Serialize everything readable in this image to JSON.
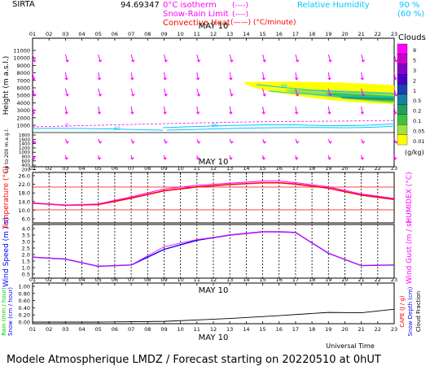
{
  "header": {
    "station": "SIRTA",
    "coords": "94.69347",
    "legend_left": [
      {
        "label": "0°C isotherm",
        "sample": "(----)",
        "color": "#ff00ff"
      },
      {
        "label": "Snow-Rain Limit",
        "sample": "(----)",
        "color": "#ff00ff"
      },
      {
        "label": "Convective Heat",
        "sample": "(——) (°C/minute)",
        "color": "#ff0000"
      }
    ],
    "legend_right": [
      {
        "label": "Relative Humidity",
        "v1": "90 %",
        "v2": "(60 %)",
        "color": "#00c8ff"
      }
    ]
  },
  "footer": {
    "title": "Modele Atmospherique LMDZ / Forecast starting on 20220510 at 0hUT",
    "time_label": "Universal Time"
  },
  "colors": {
    "temp": "#ff0000",
    "humidex": "#ff00ff",
    "wind": "#0000ff",
    "gust": "#ff00ff",
    "rain": "#000000"
  },
  "chart_data": [
    {
      "type": "heatmap",
      "name": "vertical profile",
      "title": "MAY 10",
      "x_ticks": [
        "01",
        "02",
        "03",
        "04",
        "05",
        "06",
        "07",
        "08",
        "09",
        "10",
        "11",
        "12",
        "13",
        "14",
        "15",
        "16",
        "17",
        "18",
        "19",
        "20",
        "21",
        "22",
        "23"
      ],
      "ylabel": "Height (m a.s.l.)",
      "ylabel2": "Up to 200 m a.g.l.",
      "y_ticks_upper": [
        "11000",
        "10000",
        "9000",
        "8000",
        "7000",
        "6000",
        "5000",
        "4000",
        "3000",
        "2000",
        "1000"
      ],
      "y_ticks_lower": [
        "1800",
        "1600",
        "1400",
        "1200",
        "1000",
        "800",
        "600",
        "400",
        "200"
      ],
      "cloud_label": "Clouds",
      "cloud_scale": [
        "9",
        "5",
        "3",
        "2",
        "1",
        "0.5",
        "0.2",
        "0.1",
        "0.05",
        "0.01"
      ],
      "cloud_unit": "(g/kg)",
      "cloud_colors": [
        "#ff00ff",
        "#cc00cc",
        "#8800cc",
        "#4a00c8",
        "#2040b0",
        "#1a7fa0",
        "#20a060",
        "#40c040",
        "#a0e040",
        "#ffff00"
      ],
      "isotherm_label": "0"
    },
    {
      "type": "line",
      "name": "temperature",
      "title": "MAY 10",
      "ylabel": "Temperature (°C)",
      "ylabel_right": "HUMIDEX (°C)",
      "y_ticks": [
        "26.0",
        "22.0",
        "18.0",
        "14.0",
        "10.0",
        "6.0"
      ],
      "ylim": [
        6,
        26
      ],
      "x": [
        1,
        3,
        5,
        7,
        9,
        11,
        13,
        15,
        16,
        17,
        19,
        21,
        23
      ],
      "series": [
        {
          "values": [
            13.3,
            12.3,
            12.6,
            15.6,
            19.0,
            20.8,
            21.9,
            22.7,
            22.7,
            22.1,
            20.2,
            17.0,
            15.0
          ]
        },
        {
          "values": [
            13.3,
            12.3,
            12.9,
            16.2,
            19.8,
            21.5,
            22.5,
            23.5,
            23.5,
            22.8,
            20.8,
            17.5,
            15.5
          ]
        }
      ]
    },
    {
      "type": "line",
      "name": "wind",
      "ylabel": "Wind Speed (m / s)",
      "ylabel_right": "Wind Gust (m / s)",
      "y_ticks": [
        "4.0",
        "3.5",
        "3.0",
        "2.5",
        "2.0",
        "1.5",
        "1.0",
        "0.5"
      ],
      "ylim": [
        0.5,
        4.0
      ],
      "x": [
        1,
        3,
        5,
        7,
        9,
        11,
        13,
        15,
        16,
        17,
        19,
        21,
        23
      ],
      "series": [
        {
          "values": [
            1.8,
            1.65,
            1.1,
            1.2,
            2.4,
            3.1,
            3.5,
            3.75,
            3.75,
            3.7,
            2.1,
            1.15,
            1.2
          ]
        },
        {
          "values": [
            1.8,
            1.65,
            1.1,
            1.2,
            2.6,
            3.15,
            3.5,
            3.75,
            3.75,
            3.7,
            2.1,
            1.15,
            1.2
          ]
        }
      ]
    },
    {
      "type": "line",
      "name": "precipitation",
      "title": "MAY 10",
      "ylabel": "Rain (mm / hour)",
      "ylabel2": "Snow (cm / hour)",
      "ylabel_right": "CAPE (J / g)",
      "ylabel_right2": "Snow Depth (cm)",
      "ylabel_right3": "Cloud Fraction",
      "y_ticks": [
        "1.00",
        "0.80",
        "0.60",
        "0.40",
        "0.20",
        "0.00"
      ],
      "ylim": [
        0,
        1
      ],
      "x": [
        1,
        5,
        9,
        13,
        16,
        19,
        21,
        23
      ],
      "series": [
        {
          "values": [
            0.0,
            0.0,
            0.02,
            0.1,
            0.18,
            0.27,
            0.26,
            0.36
          ]
        }
      ]
    }
  ]
}
